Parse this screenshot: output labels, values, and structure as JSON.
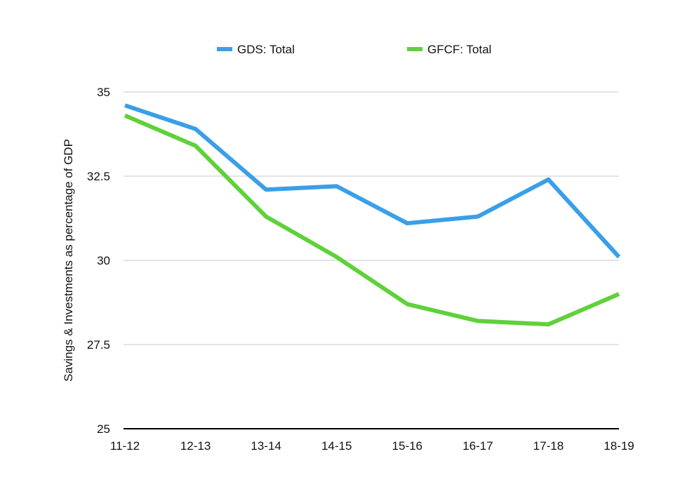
{
  "chart_data": {
    "type": "line",
    "title": "",
    "xlabel": "",
    "ylabel": "Savings & Investments as percentage of GDP",
    "categories": [
      "11-12",
      "12-13",
      "13-14",
      "14-15",
      "15-16",
      "16-17",
      "17-18",
      "18-19"
    ],
    "ylim": [
      25,
      35
    ],
    "yticks": [
      25,
      27.5,
      30,
      32.5,
      35
    ],
    "ytick_labels": [
      "25",
      "27.5",
      "30",
      "32.5",
      "35"
    ],
    "grid": true,
    "legend_position": "top",
    "series": [
      {
        "name": "GDS: Total",
        "color": "#3a9fe8",
        "values": [
          34.6,
          33.9,
          32.1,
          32.2,
          31.1,
          31.3,
          32.4,
          30.1
        ]
      },
      {
        "name": "GFCF: Total",
        "color": "#5fd13a",
        "values": [
          34.3,
          33.4,
          31.3,
          30.1,
          28.7,
          28.2,
          28.1,
          29.0
        ]
      }
    ]
  }
}
